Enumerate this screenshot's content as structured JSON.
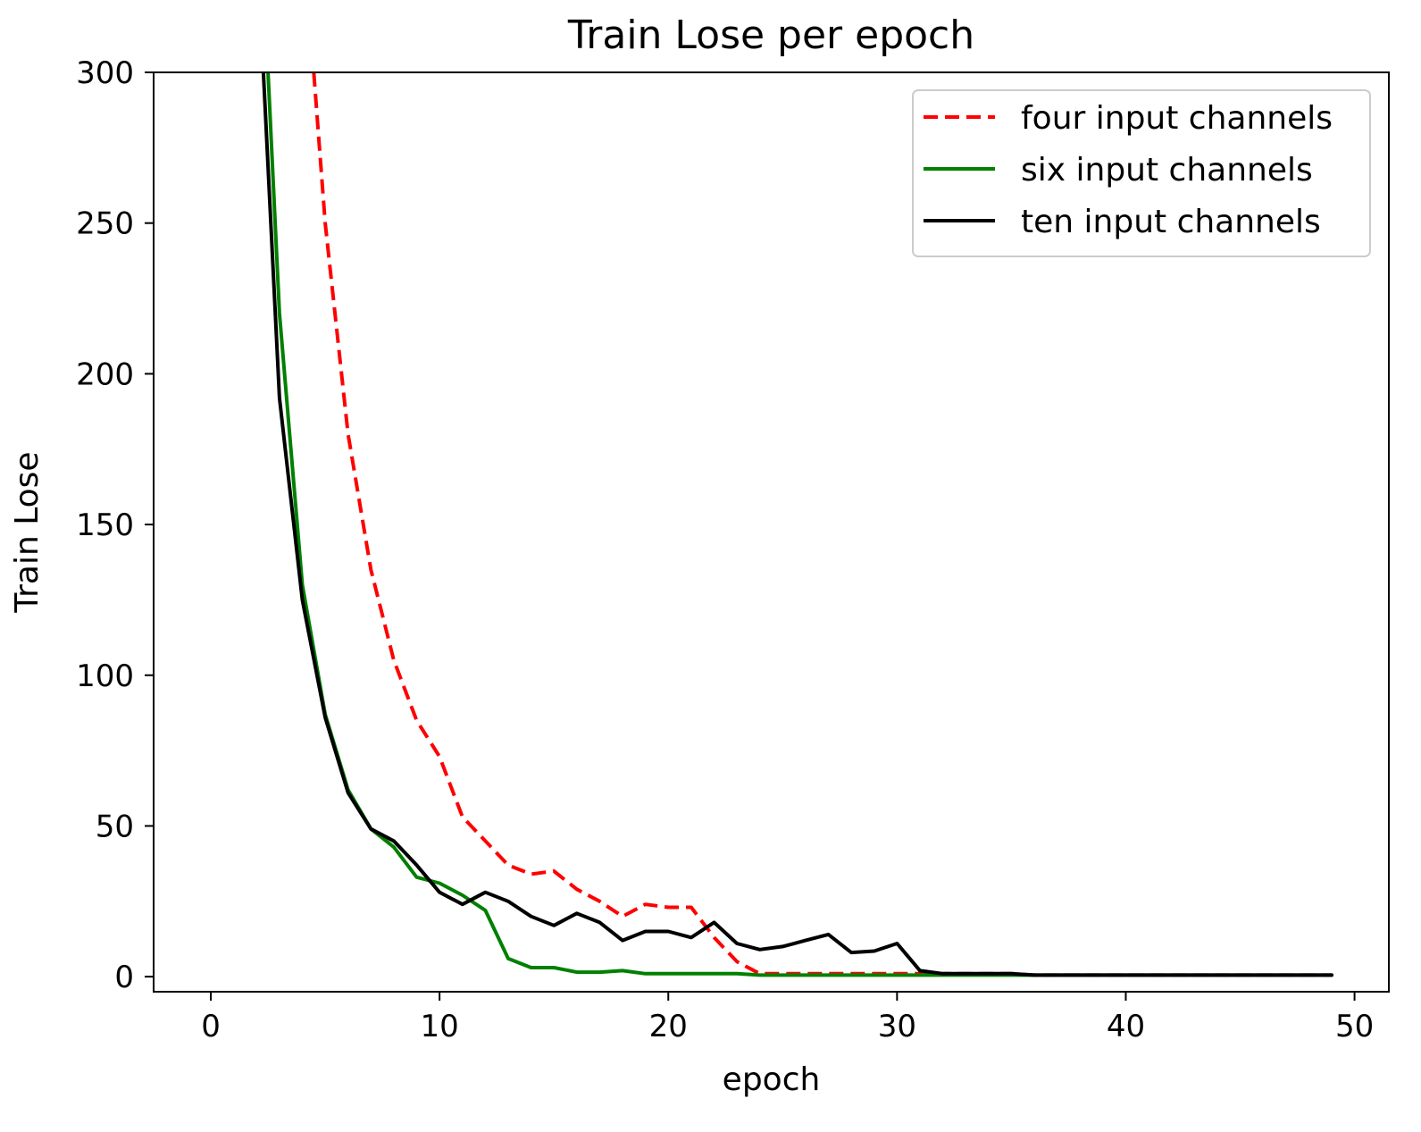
{
  "chart_data": {
    "type": "line",
    "title": "Train Lose per epoch",
    "xlabel": "epoch",
    "ylabel": "Train Lose",
    "xlim": [
      -2.5,
      51.5
    ],
    "ylim": [
      -5,
      300
    ],
    "xticks": [
      0,
      10,
      20,
      30,
      40,
      50
    ],
    "yticks": [
      0,
      50,
      100,
      150,
      200,
      250,
      300
    ],
    "xtick_labels": [
      "0",
      "10",
      "20",
      "30",
      "40",
      "50"
    ],
    "ytick_labels": [
      "0",
      "50",
      "100",
      "150",
      "200",
      "250",
      "300"
    ],
    "grid": false,
    "legend_position": "top-right",
    "series": [
      {
        "name": "four input channels",
        "color": "#ff0000",
        "dash": "dashed",
        "x": [
          4.5,
          5,
          6,
          7,
          8,
          9,
          10,
          11,
          12,
          13,
          14,
          15,
          16,
          17,
          18,
          19,
          20,
          21,
          22,
          23,
          24,
          25,
          26,
          27,
          28,
          29,
          30,
          31,
          32,
          33,
          34,
          35,
          36,
          37,
          38,
          39,
          40,
          41,
          42,
          43,
          44,
          45,
          46,
          47,
          48,
          49
        ],
        "y": [
          300,
          250,
          180,
          135,
          105,
          85,
          73,
          53,
          45,
          37,
          34,
          35,
          29,
          25,
          20,
          24,
          23,
          23,
          13,
          5,
          1,
          1,
          1,
          1,
          1,
          1,
          1,
          1,
          1,
          1,
          1,
          1,
          0.5,
          0.5,
          0.5,
          0.5,
          0.5,
          0.5,
          0.5,
          0.5,
          0.5,
          0.5,
          0.5,
          0.5,
          0.5,
          0.5
        ]
      },
      {
        "name": "six input channels",
        "color": "#008000",
        "dash": "solid",
        "x": [
          2.5,
          3,
          4,
          5,
          6,
          7,
          8,
          9,
          10,
          11,
          12,
          13,
          14,
          15,
          16,
          17,
          18,
          19,
          20,
          21,
          22,
          23,
          24,
          25,
          26,
          27,
          28,
          29,
          30,
          31,
          32,
          33,
          34,
          35,
          36,
          37,
          38,
          39,
          40,
          41,
          42,
          43,
          44,
          45,
          46,
          47,
          48,
          49
        ],
        "y": [
          300,
          220,
          130,
          87,
          62,
          49,
          43,
          33,
          31,
          27,
          22,
          6,
          3,
          3,
          1.5,
          1.5,
          2,
          1,
          1,
          1,
          1,
          1,
          0.5,
          0.5,
          0.5,
          0.5,
          0.5,
          0.5,
          0.5,
          0.5,
          0.5,
          0.5,
          0.5,
          0.5,
          0.5,
          0.5,
          0.5,
          0.5,
          0.5,
          0.5,
          0.5,
          0.5,
          0.5,
          0.5,
          0.5,
          0.5,
          0.5,
          0.5
        ]
      },
      {
        "name": "ten input channels",
        "color": "#000000",
        "dash": "solid",
        "x": [
          2.3,
          3,
          4,
          5,
          6,
          7,
          8,
          9,
          10,
          11,
          12,
          13,
          14,
          15,
          16,
          17,
          18,
          19,
          20,
          21,
          22,
          23,
          24,
          25,
          26,
          27,
          28,
          29,
          30,
          31,
          32,
          33,
          34,
          35,
          36,
          37,
          38,
          39,
          40,
          41,
          42,
          43,
          44,
          45,
          46,
          47,
          48,
          49
        ],
        "y": [
          300,
          192,
          125,
          86,
          61,
          49,
          45,
          37,
          28,
          24,
          28,
          25,
          20,
          17,
          21,
          18,
          12,
          15,
          15,
          13,
          18,
          11,
          9,
          10,
          12,
          14,
          8,
          8.5,
          11,
          2,
          1,
          1,
          1,
          1,
          0.5,
          0.5,
          0.5,
          0.5,
          0.5,
          0.5,
          0.5,
          0.5,
          0.5,
          0.5,
          0.5,
          0.5,
          0.5,
          0.5
        ]
      }
    ]
  }
}
